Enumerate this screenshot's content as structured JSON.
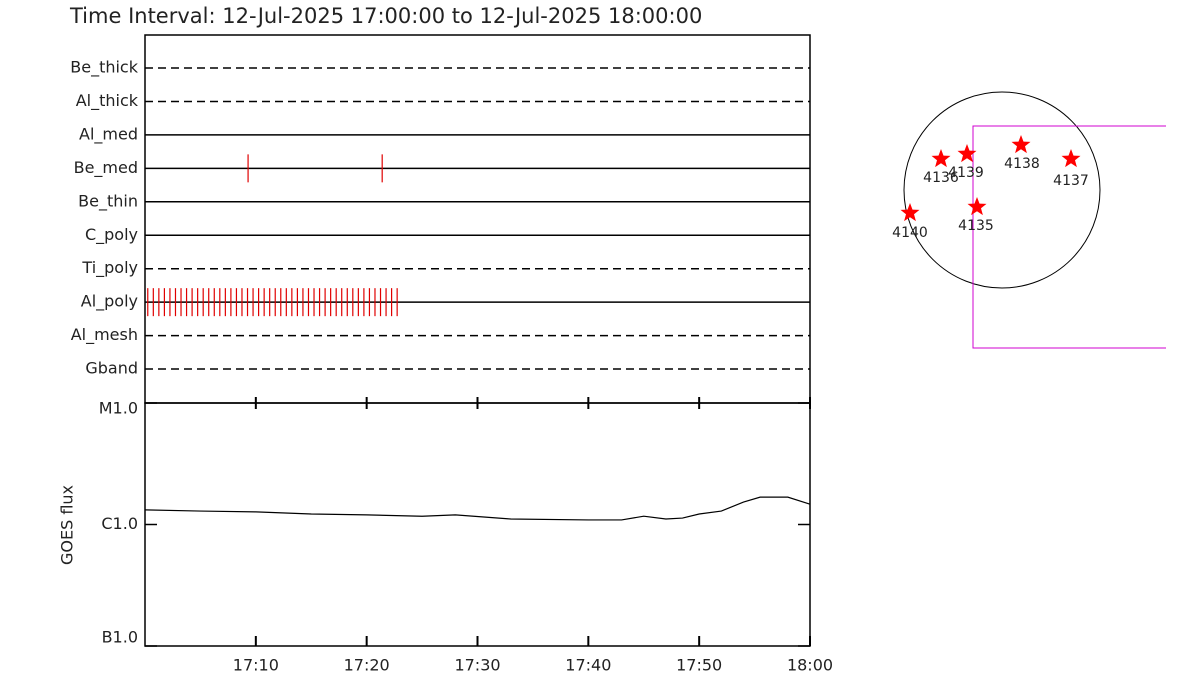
{
  "chart_data": [
    {
      "type": "timeline",
      "title": "Time Interval: 12-Jul-2025 17:00:00 to 12-Jul-2025 18:00:00",
      "categories": [
        "Be_thick",
        "Al_thick",
        "Al_med",
        "Be_med",
        "Be_thin",
        "C_poly",
        "Ti_poly",
        "Al_poly",
        "Al_mesh",
        "Gband"
      ],
      "line_styles": [
        "dashed",
        "dashed",
        "solid",
        "solid",
        "solid",
        "solid",
        "dashed",
        "solid",
        "dashed",
        "dashed"
      ],
      "observations": [
        [],
        [],
        [],
        [
          9.3,
          21.4
        ],
        [],
        [],
        [],
        [
          0.25,
          0.75,
          1.25,
          1.75,
          2.25,
          2.75,
          3.25,
          3.75,
          4.25,
          4.75,
          5.25,
          5.75,
          6.25,
          6.75,
          7.25,
          7.75,
          8.25,
          8.75,
          9.25,
          9.75,
          10.25,
          10.75,
          11.25,
          11.75,
          12.25,
          12.75,
          13.25,
          13.75,
          14.25,
          14.75,
          15.25,
          15.75,
          16.25,
          16.75,
          17.25,
          17.75,
          18.25,
          18.75,
          19.25,
          19.75,
          20.25,
          20.75,
          21.25,
          21.75,
          22.25,
          22.75
        ],
        [],
        []
      ],
      "color": "#e00000",
      "xlim": [
        0,
        60
      ]
    },
    {
      "type": "line",
      "ylabel": "GOES flux",
      "x": [
        0,
        5,
        10,
        15,
        20,
        25,
        28,
        33,
        40,
        43,
        45,
        47,
        48.5,
        50,
        52,
        54,
        55.5,
        58,
        60
      ],
      "values": [
        1.32e-06,
        1.29e-06,
        1.27e-06,
        1.22e-06,
        1.2e-06,
        1.17e-06,
        1.2e-06,
        1.11e-06,
        1.09e-06,
        1.09e-06,
        1.17e-06,
        1.11e-06,
        1.13e-06,
        1.22e-06,
        1.29e-06,
        1.53e-06,
        1.68e-06,
        1.68e-06,
        1.47e-06
      ],
      "color": "#000000",
      "xlim": [
        0,
        60
      ],
      "xticks": [
        {
          "value": 10,
          "label": "17:10"
        },
        {
          "value": 20,
          "label": "17:20"
        },
        {
          "value": 30,
          "label": "17:30"
        },
        {
          "value": 40,
          "label": "17:40"
        },
        {
          "value": 50,
          "label": "17:50"
        },
        {
          "value": 60,
          "label": "18:00"
        }
      ],
      "ylim": [
        1e-07,
        1e-05
      ],
      "yticks": [
        {
          "value": 1e-07,
          "label": "B1.0"
        },
        {
          "value": 1e-06,
          "label": "C1.0"
        },
        {
          "value": 1e-05,
          "label": "M1.0"
        }
      ],
      "log_y": true
    },
    {
      "type": "map",
      "regions": [
        "4136",
        "4139",
        "4138",
        "4137",
        "4140",
        "4135"
      ],
      "star_color": "#ff0000",
      "fov_color": "#d000d0"
    }
  ]
}
